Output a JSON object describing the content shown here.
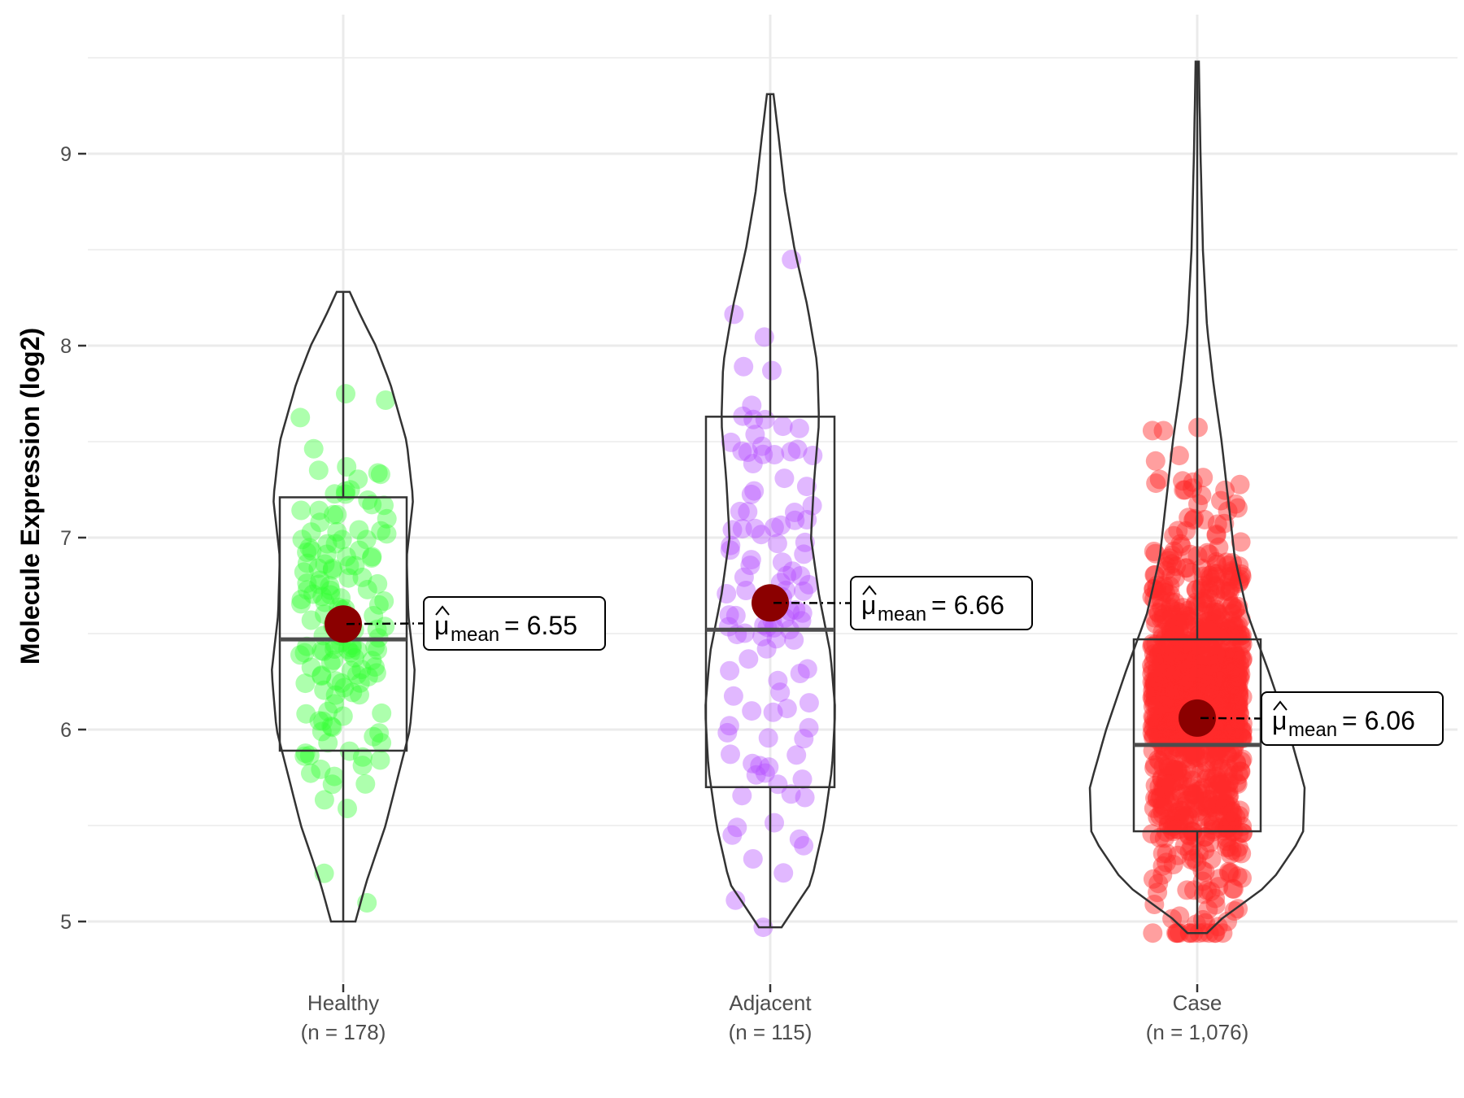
{
  "chart_data": {
    "type": "violin",
    "title": "",
    "xlabel": "",
    "ylabel": "Molecule Expression (log2)",
    "ylim": [
      4.7,
      9.6
    ],
    "yticks": [
      5,
      6,
      7,
      8,
      9
    ],
    "grid": true,
    "groups": [
      {
        "name": "Healthy",
        "n_label": "(n = 178)",
        "color": "#33ff33",
        "range": [
          5.0,
          8.28
        ],
        "box": {
          "q1": 5.89,
          "median": 6.47,
          "q3": 7.21,
          "whisker_low": 5.0,
          "whisker_high": 8.28
        },
        "mean": 6.55,
        "mean_symbol": "μ",
        "mean_sub": "mean",
        "mean_label": "= 6.55"
      },
      {
        "name": "Adjacent",
        "n_label": "(n = 115)",
        "color": "#b44dff",
        "range": [
          4.97,
          9.31
        ],
        "box": {
          "q1": 5.7,
          "median": 6.52,
          "q3": 7.63,
          "whisker_low": 4.97,
          "whisker_high": 9.31
        },
        "mean": 6.66,
        "mean_symbol": "μ",
        "mean_sub": "mean",
        "mean_label": "= 6.66"
      },
      {
        "name": "Case",
        "n_label": "(n = 1,076)",
        "color": "#ff2a2a",
        "range": [
          4.94,
          9.48
        ],
        "box": {
          "q1": 5.47,
          "median": 5.92,
          "q3": 6.47,
          "whisker_low": 4.96,
          "whisker_high": 9.48
        },
        "mean": 6.06,
        "mean_symbol": "μ",
        "mean_sub": "mean",
        "mean_label": "= 6.06"
      }
    ],
    "mean_marker_color": "#8b0000"
  }
}
